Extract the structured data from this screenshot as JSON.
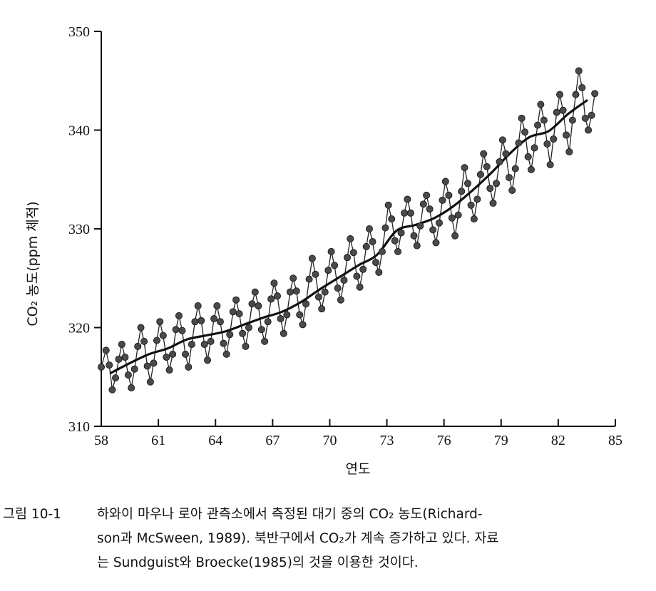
{
  "chart_data": {
    "type": "line",
    "ylabel": "CO₂ 농도(ppm 체적)",
    "xlabel": "연도",
    "xlim": [
      58,
      85
    ],
    "ylim": [
      310,
      350
    ],
    "xticks": [
      58,
      61,
      64,
      67,
      70,
      73,
      76,
      79,
      82,
      85
    ],
    "xtick_labels": [
      "58",
      "61",
      "64",
      "67",
      "70",
      "73",
      "76",
      "79",
      "82",
      "85"
    ],
    "yticks": [
      310,
      320,
      330,
      340,
      350
    ],
    "ytick_labels": [
      "310",
      "320",
      "330",
      "340",
      "350"
    ],
    "grid": false,
    "series": [
      {
        "style": "monthly-markers",
        "x": [
          58.0,
          58.25,
          58.42,
          58.58,
          58.75,
          58.92,
          59.08,
          59.25,
          59.42,
          59.58,
          59.75,
          59.92,
          60.08,
          60.25,
          60.42,
          60.58,
          60.75,
          60.92,
          61.08,
          61.25,
          61.42,
          61.58,
          61.75,
          61.92,
          62.08,
          62.25,
          62.42,
          62.58,
          62.75,
          62.92,
          63.08,
          63.25,
          63.42,
          63.58,
          63.75,
          63.92,
          64.08,
          64.25,
          64.42,
          64.58,
          64.75,
          64.92,
          65.08,
          65.25,
          65.42,
          65.58,
          65.75,
          65.92,
          66.08,
          66.25,
          66.42,
          66.58,
          66.75,
          66.92,
          67.08,
          67.25,
          67.42,
          67.58,
          67.75,
          67.92,
          68.08,
          68.25,
          68.42,
          68.58,
          68.75,
          68.92,
          69.08,
          69.25,
          69.42,
          69.58,
          69.75,
          69.92,
          70.08,
          70.25,
          70.42,
          70.58,
          70.75,
          70.92,
          71.08,
          71.25,
          71.42,
          71.58,
          71.75,
          71.92,
          72.08,
          72.25,
          72.42,
          72.58,
          72.75,
          72.92,
          73.08,
          73.25,
          73.42,
          73.58,
          73.75,
          73.92,
          74.08,
          74.25,
          74.42,
          74.58,
          74.75,
          74.92,
          75.08,
          75.25,
          75.42,
          75.58,
          75.75,
          75.92,
          76.08,
          76.25,
          76.42,
          76.58,
          76.75,
          76.92,
          77.08,
          77.25,
          77.42,
          77.58,
          77.75,
          77.92,
          78.08,
          78.25,
          78.42,
          78.58,
          78.75,
          78.92,
          79.08,
          79.25,
          79.42,
          79.58,
          79.75,
          79.92,
          80.08,
          80.25,
          80.42,
          80.58,
          80.75,
          80.92,
          81.08,
          81.25,
          81.42,
          81.58,
          81.75,
          81.92,
          82.08,
          82.25,
          82.42,
          82.58,
          82.75,
          82.92,
          83.08,
          83.25,
          83.42,
          83.58,
          83.75,
          83.92
        ],
        "values": [
          316.0,
          317.7,
          316.2,
          313.7,
          314.9,
          316.8,
          318.3,
          317.0,
          315.2,
          313.9,
          315.8,
          318.1,
          320.0,
          318.6,
          316.1,
          314.5,
          316.4,
          318.7,
          320.6,
          319.2,
          317.0,
          315.7,
          317.3,
          319.8,
          321.2,
          319.7,
          317.3,
          316.0,
          318.3,
          320.6,
          322.2,
          320.7,
          318.3,
          316.7,
          318.6,
          320.9,
          322.2,
          320.6,
          318.4,
          317.3,
          319.3,
          321.6,
          322.8,
          321.4,
          319.4,
          318.1,
          320.0,
          322.4,
          323.6,
          322.2,
          319.8,
          318.6,
          320.6,
          322.9,
          324.5,
          323.2,
          320.9,
          319.4,
          321.3,
          323.6,
          325.0,
          323.7,
          321.3,
          320.3,
          322.4,
          324.9,
          327.0,
          325.4,
          323.1,
          321.9,
          323.6,
          325.8,
          327.7,
          326.3,
          324.0,
          322.8,
          324.8,
          327.1,
          329.0,
          327.6,
          325.2,
          324.1,
          325.9,
          328.2,
          330.0,
          328.7,
          326.6,
          325.6,
          327.7,
          330.1,
          332.4,
          331.0,
          328.8,
          327.7,
          329.6,
          331.6,
          333.0,
          331.6,
          329.3,
          328.3,
          330.3,
          332.5,
          333.4,
          332.0,
          329.9,
          328.6,
          330.6,
          332.9,
          334.8,
          333.4,
          331.1,
          329.3,
          331.4,
          333.8,
          336.2,
          334.6,
          332.4,
          331.0,
          333.0,
          335.5,
          337.6,
          336.3,
          334.1,
          332.6,
          334.6,
          336.8,
          339.0,
          337.6,
          335.2,
          333.9,
          336.1,
          338.7,
          341.2,
          339.8,
          337.3,
          336.0,
          338.2,
          340.5,
          342.6,
          341.0,
          338.6,
          336.5,
          339.1,
          341.8,
          343.6,
          342.0,
          339.5,
          337.8,
          341.0,
          343.6,
          346.0,
          344.3,
          341.2,
          340.0,
          341.5,
          343.7
        ]
      },
      {
        "style": "smoothed-trend",
        "x": [
          58.5,
          59.5,
          60.5,
          61.5,
          62.5,
          63.5,
          64.5,
          65.5,
          66.5,
          67.5,
          68.5,
          69.5,
          70.5,
          71.5,
          72.5,
          73.5,
          74.5,
          75.5,
          76.5,
          77.5,
          78.5,
          79.5,
          80.5,
          81.5,
          82.5,
          83.5
        ],
        "values": [
          315.4,
          316.4,
          317.3,
          317.9,
          318.8,
          319.2,
          319.6,
          320.3,
          321.0,
          321.6,
          322.6,
          323.9,
          325.1,
          326.3,
          327.4,
          329.8,
          330.4,
          331.1,
          332.3,
          333.9,
          335.7,
          337.7,
          339.3,
          339.9,
          341.6,
          343.0
        ]
      }
    ]
  },
  "caption": {
    "label": "그림 10-1",
    "lines": [
      "하와이 마우나 로아 관측소에서 측정된 대기 중의 CO₂ 농도(Richard-",
      "son과 McSween, 1989). 북반구에서 CO₂가 계속 증가하고 있다. 자료",
      "는 Sundguist와 Broecke(1985)의 것을 이용한 것이다."
    ]
  }
}
